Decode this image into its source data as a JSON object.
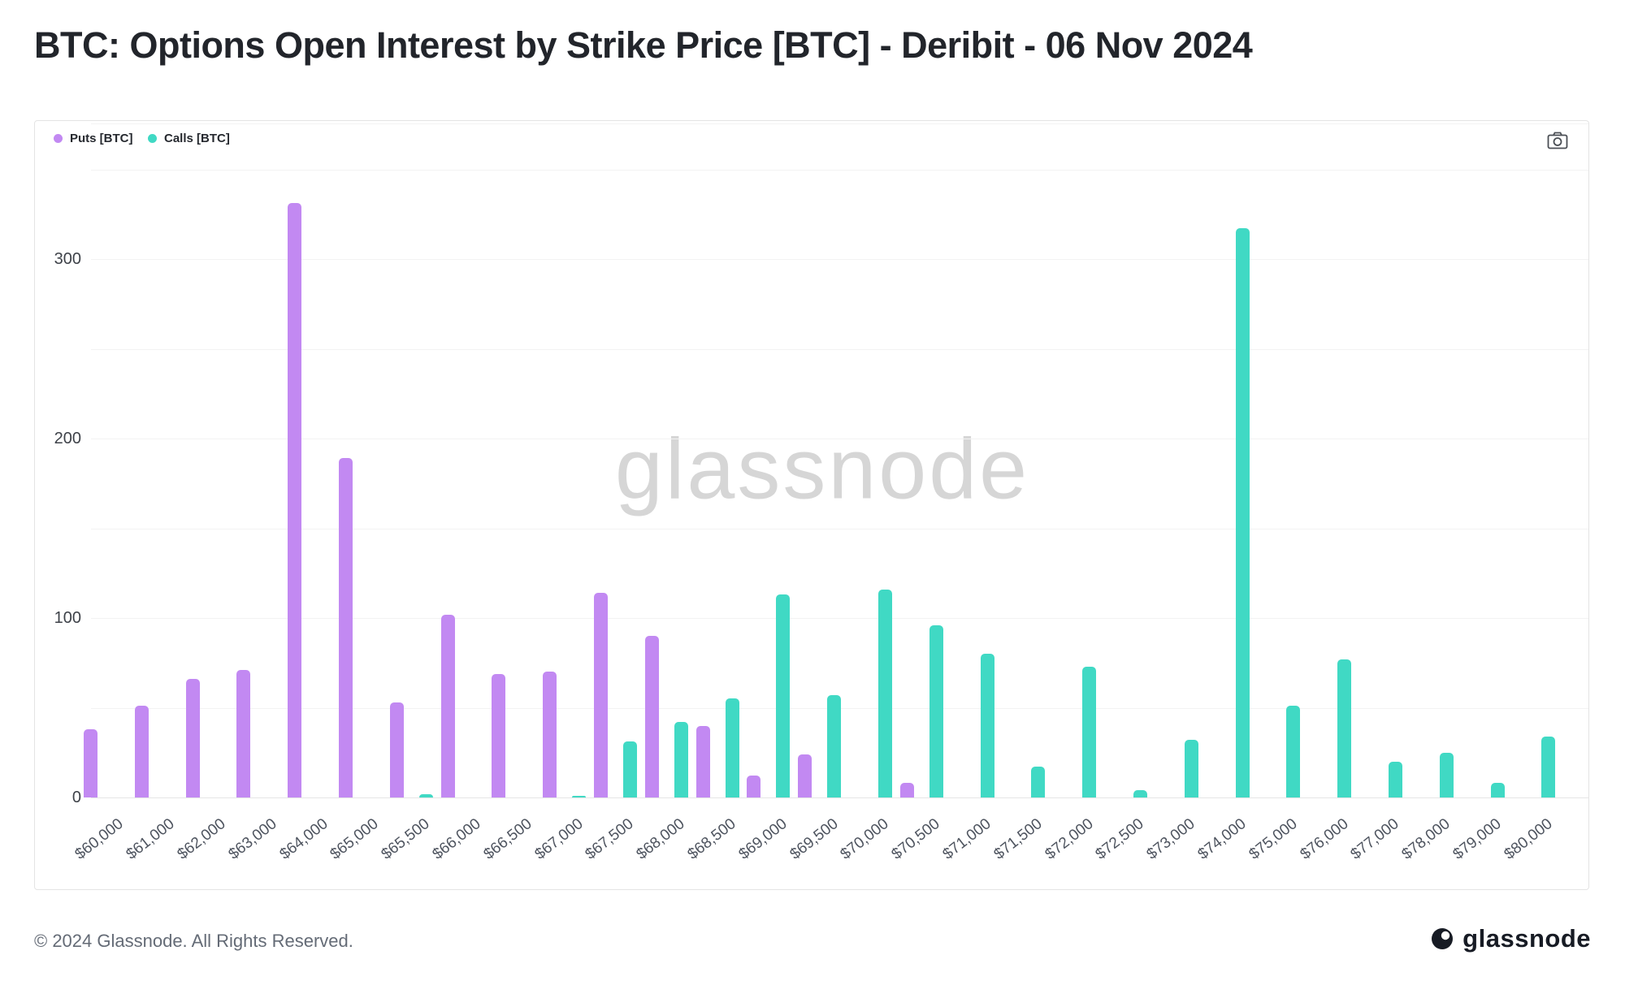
{
  "title": "BTC: Options Open Interest by Strike Price [BTC] - Deribit - 06 Nov 2024",
  "legend": [
    {
      "label": "Puts [BTC]",
      "color": "#c289f2"
    },
    {
      "label": "Calls [BTC]",
      "color": "#40d9c4"
    }
  ],
  "toolbar": {
    "camera_icon": "camera-icon"
  },
  "watermark": "glassnode",
  "footer": {
    "copyright": "© 2024 Glassnode. All Rights Reserved.",
    "brand": "glassnode"
  },
  "chart_data": {
    "type": "bar",
    "title": "BTC: Options Open Interest by Strike Price [BTC] - Deribit - 06 Nov 2024",
    "xlabel": "",
    "ylabel": "",
    "categories": [
      "$60,000",
      "$61,000",
      "$62,000",
      "$63,000",
      "$64,000",
      "$65,000",
      "$65,500",
      "$66,000",
      "$66,500",
      "$67,000",
      "$67,500",
      "$68,000",
      "$68,500",
      "$69,000",
      "$69,500",
      "$70,000",
      "$70,500",
      "$71,000",
      "$71,500",
      "$72,000",
      "$72,500",
      "$73,000",
      "$74,000",
      "$75,000",
      "$76,000",
      "$77,000",
      "$78,000",
      "$79,000",
      "$80,000"
    ],
    "series": [
      {
        "name": "Puts [BTC]",
        "color": "#c289f2",
        "values": [
          38,
          51,
          66,
          71,
          331,
          189,
          53,
          102,
          69,
          70,
          114,
          90,
          40,
          12,
          24,
          null,
          8,
          null,
          null,
          null,
          null,
          null,
          null,
          null,
          null,
          null,
          null,
          null,
          null
        ]
      },
      {
        "name": "Calls [BTC]",
        "color": "#40d9c4",
        "values": [
          null,
          null,
          null,
          null,
          null,
          null,
          2,
          null,
          null,
          1,
          31,
          42,
          55,
          113,
          57,
          116,
          96,
          80,
          17,
          73,
          4,
          32,
          317,
          51,
          77,
          20,
          25,
          8,
          34
        ]
      }
    ],
    "yticks": [
      0,
      100,
      200,
      300
    ],
    "gridline_step": 50,
    "ylim": [
      0,
      375
    ],
    "grid": true,
    "legend_position": "top-left",
    "x_tick_rotation": -38
  }
}
